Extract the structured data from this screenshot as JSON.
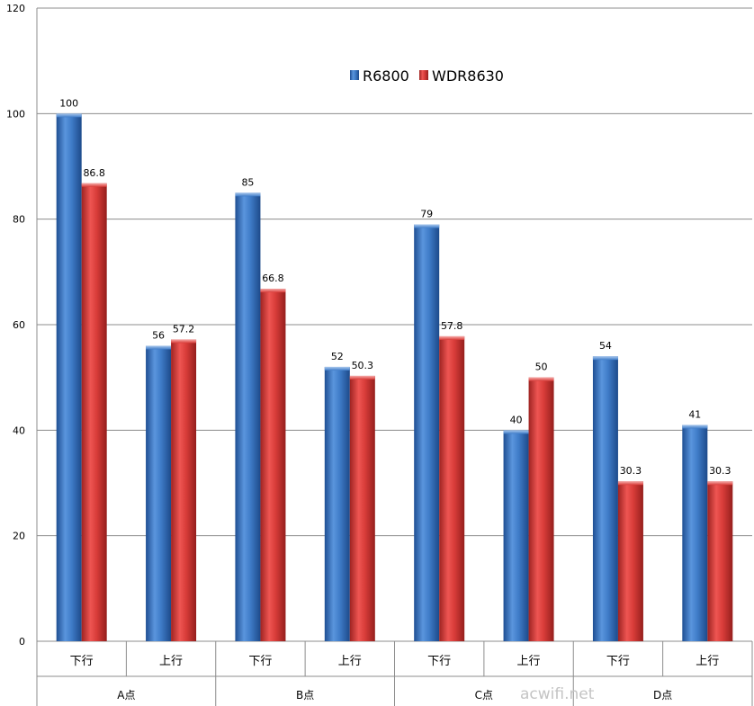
{
  "chart_data": {
    "type": "bar",
    "groups": [
      "A点",
      "B点",
      "C点",
      "D点"
    ],
    "categories": [
      "下行",
      "上行",
      "下行",
      "上行",
      "下行",
      "上行",
      "下行",
      "上行"
    ],
    "series": [
      {
        "name": "R6800",
        "values": [
          100,
          56,
          85,
          52,
          79,
          40,
          54,
          41
        ],
        "labels": [
          "100",
          "56",
          "85",
          "52",
          "79",
          "40",
          "54",
          "41"
        ],
        "color": "#3a74c0"
      },
      {
        "name": "WDR8630",
        "values": [
          86.8,
          57.2,
          66.8,
          50.3,
          57.8,
          50,
          30.3,
          30.3
        ],
        "labels": [
          "86.8",
          "57.2",
          "66.8",
          "50.3",
          "57.8",
          "50",
          "30.3",
          "30.3"
        ],
        "color": "#d63a37"
      }
    ],
    "yticks": [
      "0",
      "20",
      "40",
      "60",
      "80",
      "100",
      "120"
    ],
    "ylim": [
      0,
      120
    ],
    "grid": true,
    "legend_position": "top-center",
    "title": "",
    "xlabel": "",
    "ylabel": ""
  },
  "watermark": "acwifi.net"
}
